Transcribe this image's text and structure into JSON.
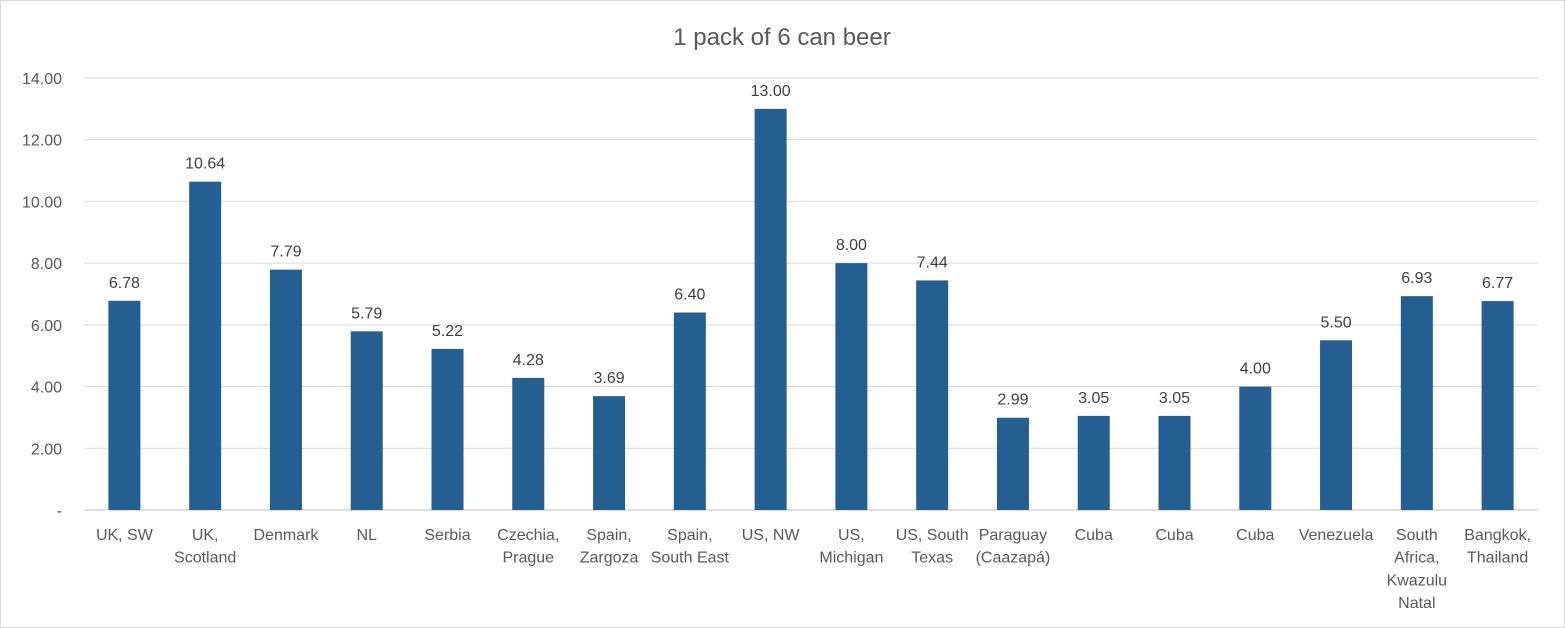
{
  "chart_data": {
    "type": "bar",
    "title": "1 pack of 6 can beer",
    "xlabel": "",
    "ylabel": "",
    "ylim": [
      0,
      14
    ],
    "yticks": [
      0,
      2,
      4,
      6,
      8,
      10,
      12,
      14
    ],
    "ytick_labels": [
      "-",
      "2.00",
      "4.00",
      "6.00",
      "8.00",
      "10.00",
      "12.00",
      "14.00"
    ],
    "grid": true,
    "bar_color": "#255e91",
    "categories": [
      [
        "UK, SW"
      ],
      [
        "UK,",
        "Scotland"
      ],
      [
        "Denmark"
      ],
      [
        "NL"
      ],
      [
        "Serbia"
      ],
      [
        "Czechia,",
        "Prague"
      ],
      [
        "Spain,",
        "Zargoza"
      ],
      [
        "Spain,",
        "South East"
      ],
      [
        "US, NW"
      ],
      [
        "US,",
        "Michigan"
      ],
      [
        "US, South",
        "Texas"
      ],
      [
        "Paraguay",
        "(Caazapá)"
      ],
      [
        "Cuba"
      ],
      [
        "Cuba"
      ],
      [
        "Cuba"
      ],
      [
        "Venezuela"
      ],
      [
        "South",
        "Africa,",
        "Kwazulu",
        "Natal"
      ],
      [
        "Bangkok,",
        "Thailand"
      ]
    ],
    "values": [
      6.78,
      10.64,
      7.79,
      5.79,
      5.22,
      4.28,
      3.69,
      6.4,
      13.0,
      8.0,
      7.44,
      2.99,
      3.05,
      3.05,
      4.0,
      5.5,
      6.93,
      6.77
    ],
    "data_labels": [
      "6.78",
      "10.64",
      "7.79",
      "5.79",
      "5.22",
      "4.28",
      "3.69",
      "6.40",
      "13.00",
      "8.00",
      "7.44",
      "2.99",
      "3.05",
      "3.05",
      "4.00",
      "5.50",
      "6.93",
      "6.77"
    ]
  }
}
